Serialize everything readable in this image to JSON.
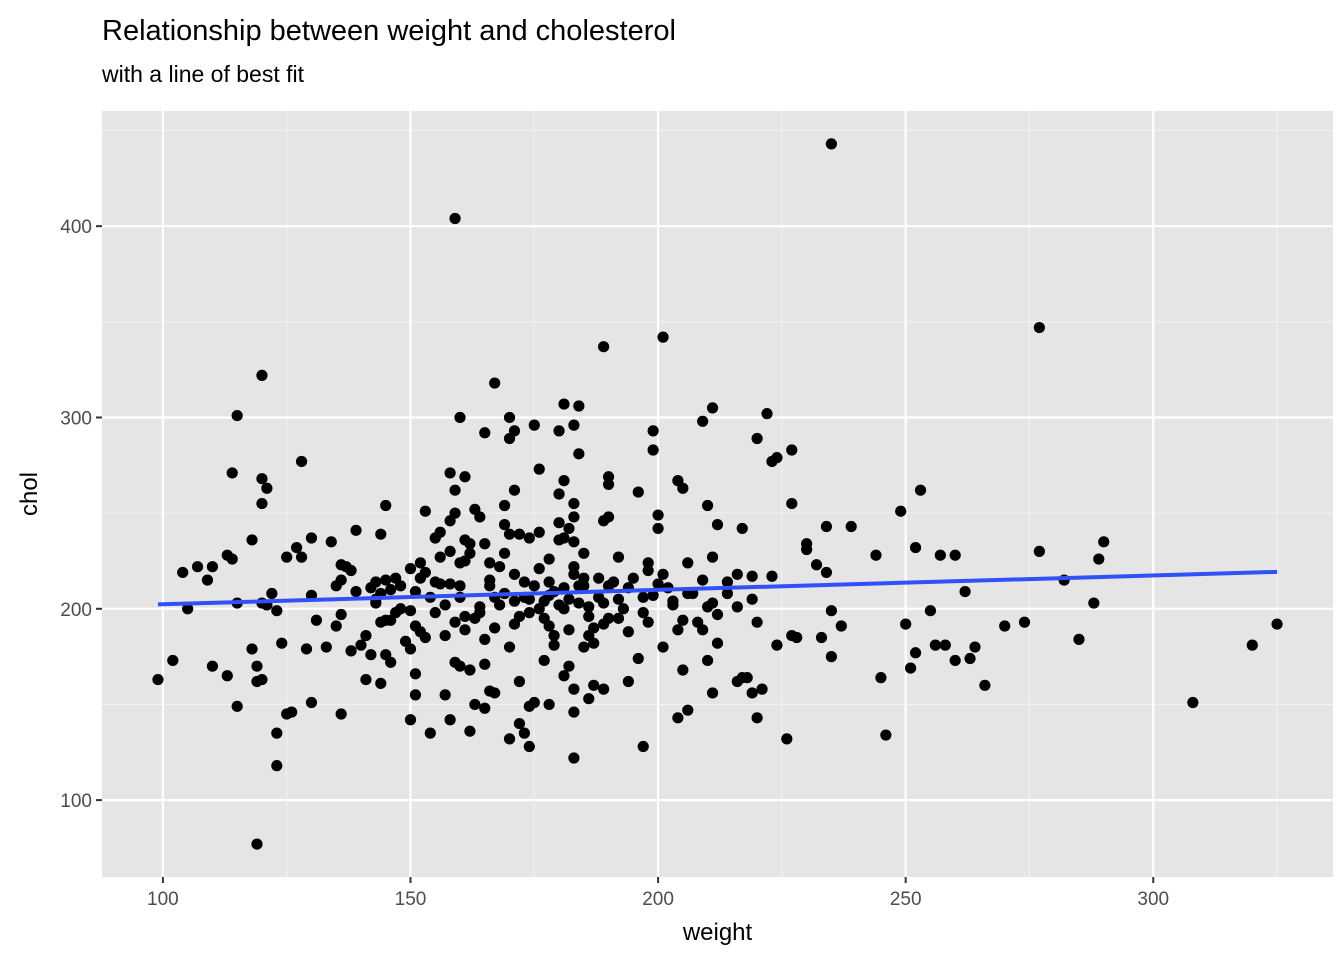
{
  "chart_data": {
    "type": "scatter",
    "title": "Relationship between weight and cholesterol",
    "subtitle": "with a line of best fit",
    "xlabel": "weight",
    "ylabel": "chol",
    "xlim": [
      87.7,
      336.3
    ],
    "ylim": [
      59.8,
      460.2
    ],
    "x_ticks": [
      100,
      150,
      200,
      250,
      300
    ],
    "x_tick_labels": [
      "100",
      "150",
      "200",
      "250",
      "300"
    ],
    "y_ticks": [
      100,
      200,
      300,
      400
    ],
    "y_tick_labels": [
      "100",
      "200",
      "300",
      "400"
    ],
    "grid": true,
    "background": "#e5e5e5",
    "point_color": "#000000",
    "fit_line": {
      "color": "#3050f8",
      "x": [
        99,
        325
      ],
      "y": [
        202.3,
        219.3
      ]
    },
    "points": [
      [
        235,
        443
      ],
      [
        159,
        404
      ],
      [
        277,
        347
      ],
      [
        201,
        342
      ],
      [
        189,
        337
      ],
      [
        120,
        322
      ],
      [
        167,
        318
      ],
      [
        181,
        307
      ],
      [
        184,
        306
      ],
      [
        211,
        305
      ],
      [
        115,
        301
      ],
      [
        160,
        300
      ],
      [
        170,
        300
      ],
      [
        222,
        302
      ],
      [
        209,
        298
      ],
      [
        175,
        296
      ],
      [
        180,
        293
      ],
      [
        199,
        293
      ],
      [
        183,
        296
      ],
      [
        171,
        293
      ],
      [
        165,
        292
      ],
      [
        170,
        289
      ],
      [
        220,
        289
      ],
      [
        227,
        283
      ],
      [
        199,
        283
      ],
      [
        184,
        281
      ],
      [
        224,
        279
      ],
      [
        223,
        277
      ],
      [
        128,
        277
      ],
      [
        176,
        273
      ],
      [
        114,
        271
      ],
      [
        158,
        271
      ],
      [
        161,
        269
      ],
      [
        120,
        268
      ],
      [
        190,
        269
      ],
      [
        181,
        267
      ],
      [
        204,
        267
      ],
      [
        190,
        265
      ],
      [
        121,
        263
      ],
      [
        205,
        263
      ],
      [
        159,
        262
      ],
      [
        171,
        262
      ],
      [
        253,
        262
      ],
      [
        196,
        261
      ],
      [
        180,
        260
      ],
      [
        120,
        255
      ],
      [
        145,
        254
      ],
      [
        169,
        254
      ],
      [
        183,
        255
      ],
      [
        227,
        255
      ],
      [
        163,
        252
      ],
      [
        210,
        254
      ],
      [
        153,
        251
      ],
      [
        249,
        251
      ],
      [
        159,
        250
      ],
      [
        164,
        248
      ],
      [
        183,
        248
      ],
      [
        190,
        248
      ],
      [
        200,
        249
      ],
      [
        189,
        246
      ],
      [
        217,
        242
      ],
      [
        169,
        244
      ],
      [
        158,
        246
      ],
      [
        182,
        242
      ],
      [
        180,
        245
      ],
      [
        212,
        244
      ],
      [
        234,
        243
      ],
      [
        239,
        243
      ],
      [
        200,
        242
      ],
      [
        170,
        239
      ],
      [
        176,
        240
      ],
      [
        139,
        241
      ],
      [
        172,
        239
      ],
      [
        144,
        239
      ],
      [
        174,
        237
      ],
      [
        156,
        240
      ],
      [
        181,
        237
      ],
      [
        118,
        236
      ],
      [
        130,
        237
      ],
      [
        165,
        234
      ],
      [
        134,
        235
      ],
      [
        155,
        237
      ],
      [
        161,
        236
      ],
      [
        183,
        235
      ],
      [
        180,
        236
      ],
      [
        230,
        234
      ],
      [
        290,
        235
      ],
      [
        230,
        231
      ],
      [
        127,
        232
      ],
      [
        252,
        232
      ],
      [
        277,
        230
      ],
      [
        169,
        229
      ],
      [
        158,
        230
      ],
      [
        185,
        229
      ],
      [
        162,
        229
      ],
      [
        192,
        227
      ],
      [
        211,
        227
      ],
      [
        244,
        228
      ],
      [
        257,
        228
      ],
      [
        260,
        228
      ],
      [
        289,
        226
      ],
      [
        113,
        228
      ],
      [
        128,
        227
      ],
      [
        125,
        227
      ],
      [
        114,
        226
      ],
      [
        161,
        225
      ],
      [
        166,
        224
      ],
      [
        178,
        226
      ],
      [
        198,
        224
      ],
      [
        232,
        223
      ],
      [
        107,
        222
      ],
      [
        110,
        222
      ],
      [
        136,
        223
      ],
      [
        152,
        224
      ],
      [
        183,
        222
      ],
      [
        206,
        224
      ],
      [
        104,
        219
      ],
      [
        138,
        220
      ],
      [
        150,
        221
      ],
      [
        176,
        221
      ],
      [
        234,
        219
      ],
      [
        183,
        218
      ],
      [
        201,
        218
      ],
      [
        152,
        216
      ],
      [
        209,
        215
      ],
      [
        216,
        218
      ],
      [
        185,
        216
      ],
      [
        188,
        216
      ],
      [
        195,
        216
      ],
      [
        219,
        217
      ],
      [
        223,
        217
      ],
      [
        109,
        215
      ],
      [
        136,
        215
      ],
      [
        147,
        216
      ],
      [
        145,
        215
      ],
      [
        158,
        213
      ],
      [
        166,
        215
      ],
      [
        173,
        214
      ],
      [
        178,
        214
      ],
      [
        282,
        215
      ],
      [
        135,
        212
      ],
      [
        142,
        211
      ],
      [
        160,
        212
      ],
      [
        156,
        213
      ],
      [
        181,
        211
      ],
      [
        190,
        212
      ],
      [
        200,
        213
      ],
      [
        146,
        210
      ],
      [
        144,
        208
      ],
      [
        179,
        209
      ],
      [
        122,
        208
      ],
      [
        130,
        207
      ],
      [
        151,
        209
      ],
      [
        160,
        206
      ],
      [
        262,
        209
      ],
      [
        120,
        203
      ],
      [
        115,
        203
      ],
      [
        121,
        202
      ],
      [
        171,
        204
      ],
      [
        174,
        205
      ],
      [
        182,
        205
      ],
      [
        184,
        203
      ],
      [
        189,
        203
      ],
      [
        203,
        204
      ],
      [
        211,
        203
      ],
      [
        143,
        203
      ],
      [
        180,
        202
      ],
      [
        157,
        202
      ],
      [
        186,
        201
      ],
      [
        210,
        201
      ],
      [
        216,
        201
      ],
      [
        136,
        197
      ],
      [
        123,
        199
      ],
      [
        147,
        198
      ],
      [
        105,
        200
      ],
      [
        150,
        199
      ],
      [
        155,
        198
      ],
      [
        164,
        198
      ],
      [
        174,
        198
      ],
      [
        177,
        195
      ],
      [
        190,
        195
      ],
      [
        235,
        199
      ],
      [
        255,
        199
      ],
      [
        288,
        203
      ],
      [
        144,
        193
      ],
      [
        145,
        194
      ],
      [
        135,
        191
      ],
      [
        159,
        193
      ],
      [
        171,
        192
      ],
      [
        189,
        192
      ],
      [
        198,
        193
      ],
      [
        208,
        193
      ],
      [
        220,
        193
      ],
      [
        152,
        188
      ],
      [
        161,
        189
      ],
      [
        151,
        191
      ],
      [
        167,
        190
      ],
      [
        178,
        191
      ],
      [
        187,
        190
      ],
      [
        194,
        188
      ],
      [
        204,
        189
      ],
      [
        209,
        189
      ],
      [
        237,
        191
      ],
      [
        250,
        192
      ],
      [
        270,
        191
      ],
      [
        274,
        193
      ],
      [
        124,
        182
      ],
      [
        129,
        179
      ],
      [
        140,
        181
      ],
      [
        149,
        183
      ],
      [
        153,
        185
      ],
      [
        165,
        184
      ],
      [
        170,
        180
      ],
      [
        179,
        186
      ],
      [
        185,
        180
      ],
      [
        201,
        180
      ],
      [
        212,
        182
      ],
      [
        228,
        185
      ],
      [
        224,
        181
      ],
      [
        256,
        181
      ],
      [
        258,
        181
      ],
      [
        264,
        180
      ],
      [
        320,
        181
      ],
      [
        285,
        184
      ],
      [
        325,
        192
      ],
      [
        113,
        165
      ],
      [
        119,
        170
      ],
      [
        118,
        179
      ],
      [
        138,
        178
      ],
      [
        142,
        176
      ],
      [
        159,
        172
      ],
      [
        160,
        170
      ],
      [
        165,
        171
      ],
      [
        177,
        173
      ],
      [
        182,
        170
      ],
      [
        196,
        174
      ],
      [
        210,
        173
      ],
      [
        216,
        162
      ],
      [
        217,
        164
      ],
      [
        211,
        156
      ],
      [
        227,
        186
      ],
      [
        233,
        185
      ],
      [
        260,
        173
      ],
      [
        263,
        174
      ],
      [
        251,
        169
      ],
      [
        252,
        177
      ],
      [
        119,
        162
      ],
      [
        120,
        163
      ],
      [
        141,
        163
      ],
      [
        144,
        161
      ],
      [
        146,
        172
      ],
      [
        151,
        166
      ],
      [
        162,
        168
      ],
      [
        166,
        157
      ],
      [
        172,
        162
      ],
      [
        181,
        165
      ],
      [
        187,
        160
      ],
      [
        194,
        162
      ],
      [
        205,
        168
      ],
      [
        218,
        164
      ],
      [
        221,
        158
      ],
      [
        219,
        156
      ],
      [
        235,
        175
      ],
      [
        245,
        164
      ],
      [
        266,
        160
      ],
      [
        308,
        151
      ],
      [
        151,
        155
      ],
      [
        157,
        155
      ],
      [
        167,
        156
      ],
      [
        175,
        151
      ],
      [
        183,
        158
      ],
      [
        186,
        153
      ],
      [
        189,
        158
      ],
      [
        206,
        147
      ],
      [
        204,
        143
      ],
      [
        136,
        145
      ],
      [
        130,
        151
      ],
      [
        115,
        149
      ],
      [
        126,
        146
      ],
      [
        125,
        145
      ],
      [
        174,
        149
      ],
      [
        163,
        150
      ],
      [
        178,
        150
      ],
      [
        183,
        146
      ],
      [
        150,
        142
      ],
      [
        158,
        142
      ],
      [
        172,
        140
      ],
      [
        173,
        135
      ],
      [
        154,
        135
      ],
      [
        174,
        128
      ],
      [
        162,
        136
      ],
      [
        165,
        148
      ],
      [
        170,
        132
      ],
      [
        197,
        128
      ],
      [
        183,
        122
      ],
      [
        220,
        143
      ],
      [
        226,
        132
      ],
      [
        246,
        134
      ],
      [
        123,
        135
      ],
      [
        123,
        118
      ],
      [
        119,
        77
      ],
      [
        102,
        173
      ],
      [
        99,
        163
      ],
      [
        110,
        170
      ],
      [
        145,
        176
      ],
      [
        131,
        194
      ],
      [
        143,
        205
      ],
      [
        148,
        212
      ],
      [
        153,
        219
      ],
      [
        156,
        227
      ],
      [
        162,
        234
      ],
      [
        167,
        206
      ],
      [
        169,
        208
      ],
      [
        176,
        200
      ],
      [
        182,
        189
      ],
      [
        186,
        196
      ],
      [
        192,
        205
      ],
      [
        197,
        198
      ],
      [
        202,
        211
      ],
      [
        207,
        208
      ],
      [
        214,
        214
      ],
      [
        133,
        180
      ],
      [
        141,
        186
      ],
      [
        146,
        194
      ],
      [
        150,
        179
      ],
      [
        155,
        214
      ],
      [
        163,
        195
      ],
      [
        168,
        202
      ],
      [
        173,
        206
      ],
      [
        178,
        207
      ],
      [
        185,
        212
      ],
      [
        188,
        206
      ],
      [
        193,
        200
      ],
      [
        199,
        207
      ],
      [
        203,
        202
      ],
      [
        214,
        208
      ],
      [
        219,
        205
      ],
      [
        139,
        209
      ],
      [
        148,
        200
      ],
      [
        157,
        186
      ],
      [
        164,
        201
      ],
      [
        172,
        196
      ],
      [
        179,
        181
      ],
      [
        187,
        182
      ],
      [
        194,
        211
      ],
      [
        205,
        194
      ],
      [
        137,
        222
      ],
      [
        143,
        214
      ],
      [
        154,
        206
      ],
      [
        161,
        196
      ],
      [
        168,
        222
      ],
      [
        175,
        212
      ],
      [
        181,
        200
      ],
      [
        186,
        186
      ],
      [
        191,
        214
      ],
      [
        197,
        206
      ],
      [
        206,
        208
      ],
      [
        212,
        197
      ],
      [
        160,
        224
      ],
      [
        166,
        212
      ],
      [
        171,
        218
      ],
      [
        177,
        204
      ],
      [
        184,
        212
      ],
      [
        192,
        195
      ],
      [
        198,
        220
      ]
    ]
  }
}
